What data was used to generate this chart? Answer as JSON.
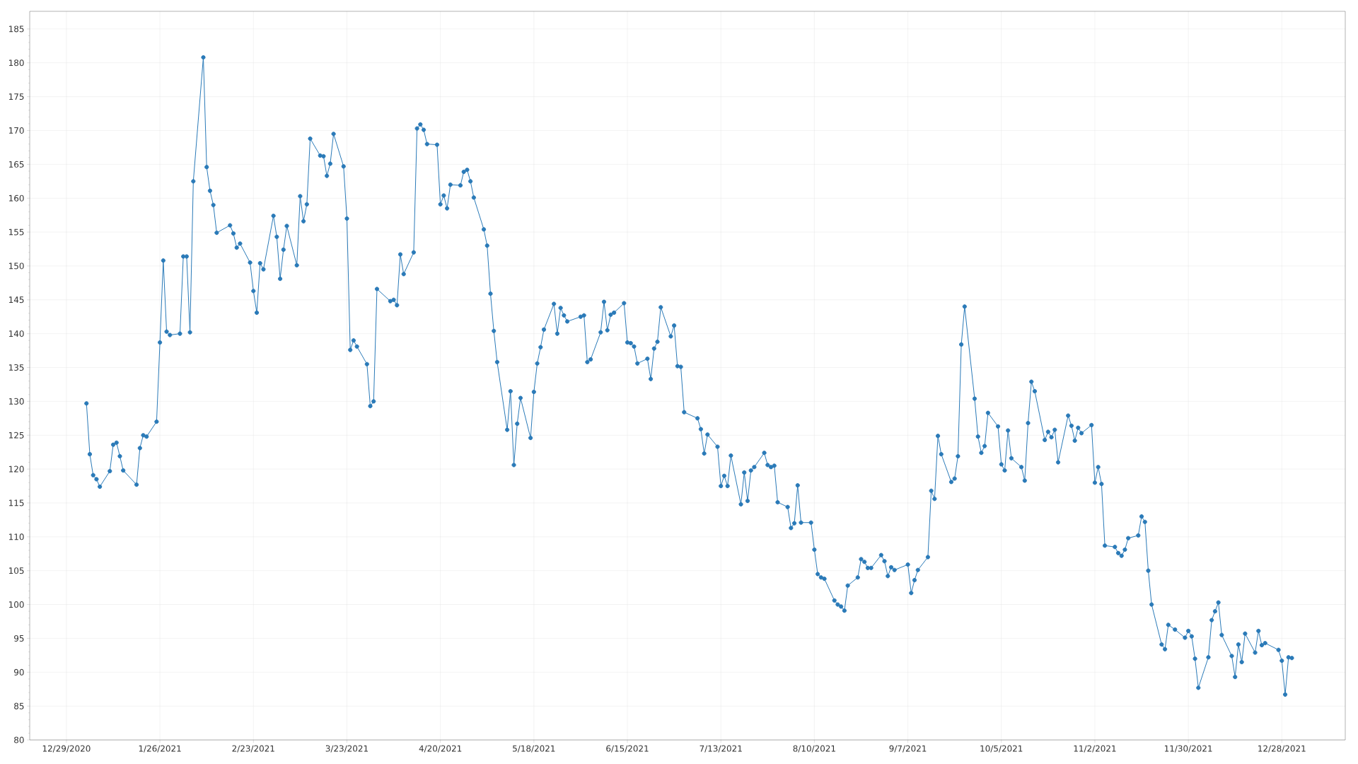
{
  "chart_data": {
    "type": "line",
    "x": [
      "2021-01-04",
      "2021-01-05",
      "2021-01-06",
      "2021-01-07",
      "2021-01-08",
      "2021-01-11",
      "2021-01-12",
      "2021-01-13",
      "2021-01-14",
      "2021-01-15",
      "2021-01-19",
      "2021-01-20",
      "2021-01-21",
      "2021-01-22",
      "2021-01-25",
      "2021-01-26",
      "2021-01-27",
      "2021-01-28",
      "2021-01-29",
      "2021-02-01",
      "2021-02-02",
      "2021-02-03",
      "2021-02-04",
      "2021-02-05",
      "2021-02-08",
      "2021-02-09",
      "2021-02-10",
      "2021-02-11",
      "2021-02-12",
      "2021-02-16",
      "2021-02-17",
      "2021-02-18",
      "2021-02-19",
      "2021-02-22",
      "2021-02-23",
      "2021-02-24",
      "2021-02-25",
      "2021-02-26",
      "2021-03-01",
      "2021-03-02",
      "2021-03-03",
      "2021-03-04",
      "2021-03-05",
      "2021-03-08",
      "2021-03-09",
      "2021-03-10",
      "2021-03-11",
      "2021-03-12",
      "2021-03-15",
      "2021-03-16",
      "2021-03-17",
      "2021-03-18",
      "2021-03-19",
      "2021-03-22",
      "2021-03-23",
      "2021-03-24",
      "2021-03-25",
      "2021-03-26",
      "2021-03-29",
      "2021-03-30",
      "2021-03-31",
      "2021-04-01",
      "2021-04-05",
      "2021-04-06",
      "2021-04-07",
      "2021-04-08",
      "2021-04-09",
      "2021-04-12",
      "2021-04-13",
      "2021-04-14",
      "2021-04-15",
      "2021-04-16",
      "2021-04-19",
      "2021-04-20",
      "2021-04-21",
      "2021-04-22",
      "2021-04-23",
      "2021-04-26",
      "2021-04-27",
      "2021-04-28",
      "2021-04-29",
      "2021-04-30",
      "2021-05-03",
      "2021-05-04",
      "2021-05-05",
      "2021-05-06",
      "2021-05-07",
      "2021-05-10",
      "2021-05-11",
      "2021-05-12",
      "2021-05-13",
      "2021-05-14",
      "2021-05-17",
      "2021-05-18",
      "2021-05-19",
      "2021-05-20",
      "2021-05-21",
      "2021-05-24",
      "2021-05-25",
      "2021-05-26",
      "2021-05-27",
      "2021-05-28",
      "2021-06-01",
      "2021-06-02",
      "2021-06-03",
      "2021-06-04",
      "2021-06-07",
      "2021-06-08",
      "2021-06-09",
      "2021-06-10",
      "2021-06-11",
      "2021-06-14",
      "2021-06-15",
      "2021-06-16",
      "2021-06-17",
      "2021-06-18",
      "2021-06-21",
      "2021-06-22",
      "2021-06-23",
      "2021-06-24",
      "2021-06-25",
      "2021-06-28",
      "2021-06-29",
      "2021-06-30",
      "2021-07-01",
      "2021-07-02",
      "2021-07-06",
      "2021-07-07",
      "2021-07-08",
      "2021-07-09",
      "2021-07-12",
      "2021-07-13",
      "2021-07-14",
      "2021-07-15",
      "2021-07-16",
      "2021-07-19",
      "2021-07-20",
      "2021-07-21",
      "2021-07-22",
      "2021-07-23",
      "2021-07-26",
      "2021-07-27",
      "2021-07-28",
      "2021-07-29",
      "2021-07-30",
      "2021-08-02",
      "2021-08-03",
      "2021-08-04",
      "2021-08-05",
      "2021-08-06",
      "2021-08-09",
      "2021-08-10",
      "2021-08-11",
      "2021-08-12",
      "2021-08-13",
      "2021-08-16",
      "2021-08-17",
      "2021-08-18",
      "2021-08-19",
      "2021-08-20",
      "2021-08-23",
      "2021-08-24",
      "2021-08-25",
      "2021-08-26",
      "2021-08-27",
      "2021-08-30",
      "2021-08-31",
      "2021-09-01",
      "2021-09-02",
      "2021-09-03",
      "2021-09-07",
      "2021-09-08",
      "2021-09-09",
      "2021-09-10",
      "2021-09-13",
      "2021-09-14",
      "2021-09-15",
      "2021-09-16",
      "2021-09-17",
      "2021-09-20",
      "2021-09-21",
      "2021-09-22",
      "2021-09-23",
      "2021-09-24",
      "2021-09-27",
      "2021-09-28",
      "2021-09-29",
      "2021-09-30",
      "2021-10-01",
      "2021-10-04",
      "2021-10-05",
      "2021-10-06",
      "2021-10-07",
      "2021-10-08",
      "2021-10-11",
      "2021-10-12",
      "2021-10-13",
      "2021-10-14",
      "2021-10-15",
      "2021-10-18",
      "2021-10-19",
      "2021-10-20",
      "2021-10-21",
      "2021-10-22",
      "2021-10-25",
      "2021-10-26",
      "2021-10-27",
      "2021-10-28",
      "2021-10-29",
      "2021-11-01",
      "2021-11-02",
      "2021-11-03",
      "2021-11-04",
      "2021-11-05",
      "2021-11-08",
      "2021-11-09",
      "2021-11-10",
      "2021-11-11",
      "2021-11-12",
      "2021-11-15",
      "2021-11-16",
      "2021-11-17",
      "2021-11-18",
      "2021-11-19",
      "2021-11-22",
      "2021-11-23",
      "2021-11-24",
      "2021-11-26",
      "2021-11-29",
      "2021-11-30",
      "2021-12-01",
      "2021-12-02",
      "2021-12-03",
      "2021-12-06",
      "2021-12-07",
      "2021-12-08",
      "2021-12-09",
      "2021-12-10",
      "2021-12-13",
      "2021-12-14",
      "2021-12-15",
      "2021-12-16",
      "2021-12-17",
      "2021-12-20",
      "2021-12-21",
      "2021-12-22",
      "2021-12-23",
      "2021-12-27",
      "2021-12-28",
      "2021-12-29",
      "2021-12-30",
      "2021-12-31"
    ],
    "values": [
      129.7,
      122.2,
      119.1,
      118.5,
      117.4,
      119.7,
      123.6,
      123.9,
      121.9,
      119.8,
      117.7,
      123.1,
      125.0,
      124.8,
      127.0,
      138.7,
      150.8,
      140.3,
      139.8,
      140.0,
      151.4,
      151.4,
      140.2,
      162.5,
      180.8,
      164.6,
      161.1,
      159.0,
      154.9,
      156.0,
      154.8,
      152.7,
      153.3,
      150.5,
      146.3,
      143.1,
      150.4,
      149.5,
      157.4,
      154.3,
      148.1,
      152.4,
      155.9,
      150.1,
      160.3,
      156.6,
      159.1,
      168.8,
      166.3,
      166.2,
      163.3,
      165.1,
      169.5,
      164.7,
      157.0,
      137.6,
      139.0,
      138.1,
      135.5,
      129.3,
      130.0,
      146.6,
      144.8,
      145.0,
      144.2,
      151.7,
      148.8,
      152.0,
      170.3,
      170.9,
      170.1,
      168.0,
      167.9,
      159.1,
      160.4,
      158.5,
      162.0,
      161.9,
      163.9,
      164.2,
      162.5,
      160.1,
      155.4,
      153.0,
      145.9,
      140.4,
      135.8,
      125.8,
      131.5,
      120.6,
      126.7,
      130.5,
      124.6,
      131.4,
      135.6,
      138.0,
      140.6,
      144.4,
      140.0,
      143.8,
      142.7,
      141.8,
      142.5,
      142.7,
      135.8,
      136.2,
      140.2,
      144.7,
      140.5,
      142.8,
      143.1,
      144.5,
      138.7,
      138.6,
      138.1,
      135.6,
      136.3,
      133.3,
      137.8,
      138.8,
      143.9,
      139.6,
      141.2,
      135.2,
      135.1,
      128.4,
      127.5,
      125.9,
      122.3,
      125.1,
      123.3,
      117.5,
      119.0,
      117.5,
      122.0,
      114.8,
      119.5,
      115.3,
      119.8,
      120.3,
      122.4,
      120.6,
      120.3,
      120.5,
      115.1,
      114.4,
      111.3,
      112.0,
      117.6,
      112.1,
      112.1,
      108.1,
      104.5,
      104.0,
      103.8,
      100.6,
      100.0,
      99.7,
      99.1,
      102.8,
      104.0,
      106.7,
      106.3,
      105.4,
      105.4,
      107.3,
      106.4,
      104.2,
      105.5,
      105.1,
      105.9,
      101.7,
      103.6,
      105.1,
      107.0,
      116.8,
      115.6,
      124.9,
      122.2,
      118.1,
      118.6,
      121.9,
      138.4,
      144.0,
      130.4,
      124.8,
      122.4,
      123.4,
      128.3,
      126.3,
      120.7,
      119.8,
      125.7,
      121.6,
      120.3,
      118.3,
      126.8,
      132.9,
      131.5,
      124.3,
      125.5,
      124.7,
      125.8,
      121.0,
      127.9,
      126.4,
      124.2,
      126.1,
      125.3,
      126.5,
      118.0,
      120.3,
      117.8,
      108.7,
      108.5,
      107.6,
      107.2,
      108.1,
      109.8,
      110.2,
      113.0,
      112.2,
      105.0,
      100.0,
      94.1,
      93.4,
      97.0,
      96.3,
      95.1,
      96.1,
      95.3,
      92.0,
      87.7,
      92.2,
      97.7,
      99.0,
      100.3,
      95.5,
      92.4,
      89.3,
      94.1,
      91.5,
      95.7,
      92.9,
      96.1,
      94.0,
      94.3,
      93.3,
      91.7,
      86.7,
      92.2,
      92.1
    ],
    "color": "#2a7ab8",
    "xlim": [
      "2020-12-18",
      "2022-01-16"
    ],
    "xticks": [
      {
        "value": "2020-12-29",
        "label": "12/29/2020"
      },
      {
        "value": "2021-01-26",
        "label": "1/26/2021"
      },
      {
        "value": "2021-02-23",
        "label": "2/23/2021"
      },
      {
        "value": "2021-03-23",
        "label": "3/23/2021"
      },
      {
        "value": "2021-04-20",
        "label": "4/20/2021"
      },
      {
        "value": "2021-05-18",
        "label": "5/18/2021"
      },
      {
        "value": "2021-06-15",
        "label": "6/15/2021"
      },
      {
        "value": "2021-07-13",
        "label": "7/13/2021"
      },
      {
        "value": "2021-08-10",
        "label": "8/10/2021"
      },
      {
        "value": "2021-09-07",
        "label": "9/7/2021"
      },
      {
        "value": "2021-10-05",
        "label": "10/5/2021"
      },
      {
        "value": "2021-11-02",
        "label": "11/2/2021"
      },
      {
        "value": "2021-11-30",
        "label": "11/30/2021"
      },
      {
        "value": "2021-12-28",
        "label": "12/28/2021"
      }
    ],
    "ylim": [
      80,
      187.6
    ],
    "yticks": [
      80,
      85,
      90,
      95,
      100,
      105,
      110,
      115,
      120,
      125,
      130,
      135,
      140,
      145,
      150,
      155,
      160,
      165,
      170,
      175,
      180,
      185
    ],
    "grid": true,
    "marker": "circle",
    "line_style": "solid"
  }
}
